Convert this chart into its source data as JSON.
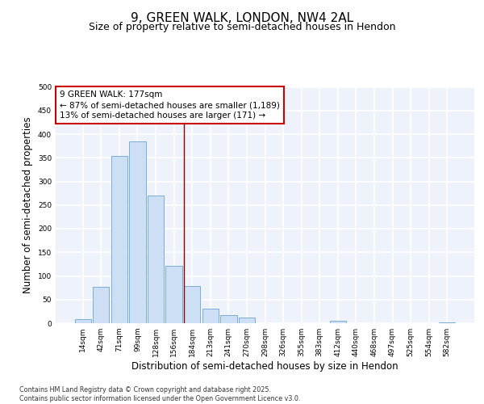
{
  "title_line1": "9, GREEN WALK, LONDON, NW4 2AL",
  "title_line2": "Size of property relative to semi-detached houses in Hendon",
  "xlabel": "Distribution of semi-detached houses by size in Hendon",
  "ylabel": "Number of semi-detached properties",
  "bar_color": "#ccdff5",
  "bar_edge_color": "#7aadd4",
  "categories": [
    "14sqm",
    "42sqm",
    "71sqm",
    "99sqm",
    "128sqm",
    "156sqm",
    "184sqm",
    "213sqm",
    "241sqm",
    "270sqm",
    "298sqm",
    "326sqm",
    "355sqm",
    "383sqm",
    "412sqm",
    "440sqm",
    "468sqm",
    "497sqm",
    "525sqm",
    "554sqm",
    "582sqm"
  ],
  "values": [
    9,
    77,
    353,
    385,
    270,
    122,
    78,
    30,
    17,
    12,
    0,
    0,
    0,
    0,
    5,
    0,
    0,
    0,
    0,
    0,
    2
  ],
  "vline_x_index": 6.0,
  "vline_color": "#8b0000",
  "annotation_text": "9 GREEN WALK: 177sqm\n← 87% of semi-detached houses are smaller (1,189)\n13% of semi-detached houses are larger (171) →",
  "annotation_box_color": "#ffffff",
  "annotation_box_edge_color": "#cc0000",
  "ylim": [
    0,
    500
  ],
  "yticks": [
    0,
    50,
    100,
    150,
    200,
    250,
    300,
    350,
    400,
    450,
    500
  ],
  "footer_text": "Contains HM Land Registry data © Crown copyright and database right 2025.\nContains public sector information licensed under the Open Government Licence v3.0.",
  "background_color": "#eef2fb",
  "grid_color": "#ffffff",
  "title_fontsize": 11,
  "subtitle_fontsize": 9,
  "tick_fontsize": 6.5,
  "axis_label_fontsize": 8.5,
  "annotation_fontsize": 7.5
}
